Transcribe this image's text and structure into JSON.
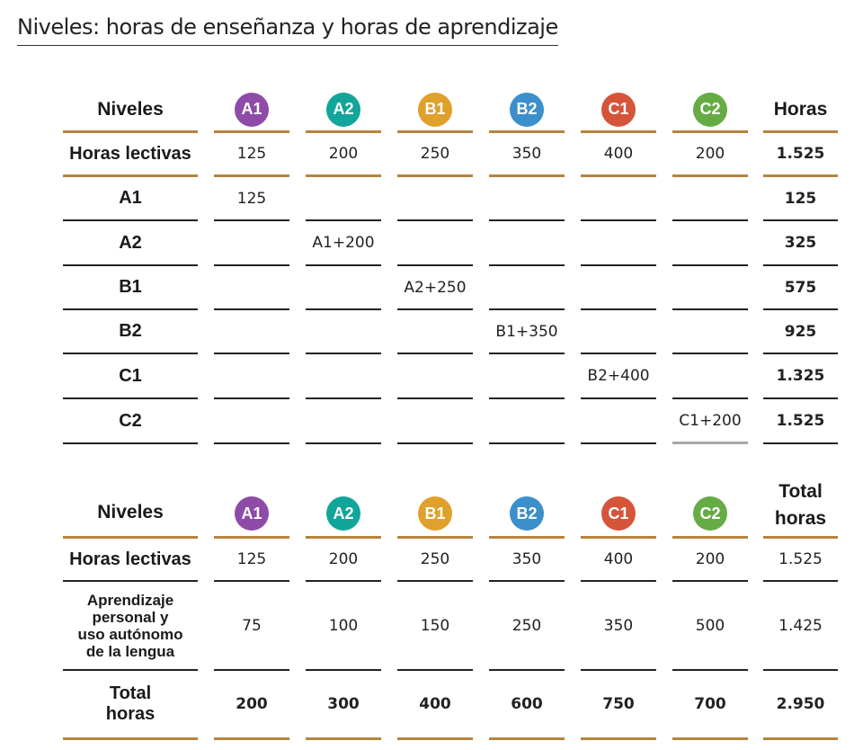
{
  "title": "Niveles: horas de enseñanza y horas de aprendizaje",
  "colors": {
    "rule": "#b5843d",
    "A1": "#8e4ba8",
    "A2": "#12a59a",
    "B1": "#e0a02c",
    "B2": "#3b8fcb",
    "C1": "#d6543a",
    "C2": "#66ac45"
  },
  "levels": [
    "A1",
    "A2",
    "B1",
    "B2",
    "C1",
    "C2"
  ],
  "table1": {
    "header": {
      "label": "Niveles",
      "total": "Horas"
    },
    "lectivas": {
      "label": "Horas lectivas",
      "values": [
        "125",
        "200",
        "250",
        "350",
        "400",
        "200"
      ],
      "total": "1.525"
    },
    "rows": [
      {
        "label": "A1",
        "value": "125",
        "total": "125"
      },
      {
        "label": "A2",
        "value": "A1+200",
        "total": "325"
      },
      {
        "label": "B1",
        "value": "A2+250",
        "total": "575"
      },
      {
        "label": "B2",
        "value": "B1+350",
        "total": "925"
      },
      {
        "label": "C1",
        "value": "B2+400",
        "total": "1.325"
      },
      {
        "label": "C2",
        "value": "C1+200",
        "total": "1.525"
      }
    ]
  },
  "table2": {
    "header": {
      "label": "Niveles",
      "total_line1": "Total",
      "total_line2": "horas"
    },
    "lectivas": {
      "label": "Horas lectivas",
      "values": [
        "125",
        "200",
        "250",
        "350",
        "400",
        "200"
      ],
      "total": "1.525"
    },
    "aprendizaje": {
      "label": [
        "Aprendizaje",
        "personal y",
        "uso autónomo",
        "de la lengua"
      ],
      "values": [
        "75",
        "100",
        "150",
        "250",
        "350",
        "500"
      ],
      "total": "1.425"
    },
    "totales": {
      "label_line1": "Total",
      "label_line2": "horas",
      "values": [
        "200",
        "300",
        "400",
        "600",
        "750",
        "700"
      ],
      "total": "2.950"
    }
  }
}
